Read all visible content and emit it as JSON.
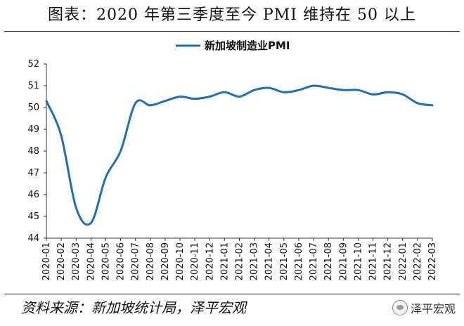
{
  "header": {
    "title": "图表：2020 年第三季度至今 PMI 维持在 50 以上"
  },
  "footer": {
    "source": "资料来源：新加坡统计局，泽平宏观",
    "watermark": "泽平宏观"
  },
  "colors": {
    "series": "#1f6fb2",
    "axis": "#333333"
  },
  "chart_data": {
    "type": "line",
    "title": "图表：2020 年第三季度至今 PMI 维持在 50 以上",
    "xlabel": "",
    "ylabel": "",
    "ylim": [
      44,
      52
    ],
    "yticks": [
      44,
      45,
      46,
      47,
      48,
      49,
      50,
      51,
      52
    ],
    "categories": [
      "2020-01",
      "2020-02",
      "2020-03",
      "2020-04",
      "2020-05",
      "2020-06",
      "2020-07",
      "2020-08",
      "2020-09",
      "2020-10",
      "2020-11",
      "2020-12",
      "2021-01",
      "2021-02",
      "2021-03",
      "2021-04",
      "2021-05",
      "2021-06",
      "2021-07",
      "2021-08",
      "2021-09",
      "2021-10",
      "2021-11",
      "2021-12",
      "2022-01",
      "2022-02",
      "2022-03"
    ],
    "series": [
      {
        "name": "新加坡制造业PMI",
        "values": [
          50.3,
          48.7,
          45.4,
          44.7,
          46.8,
          48.0,
          50.2,
          50.1,
          50.3,
          50.5,
          50.4,
          50.5,
          50.7,
          50.5,
          50.8,
          50.9,
          50.7,
          50.8,
          51.0,
          50.9,
          50.8,
          50.8,
          50.6,
          50.7,
          50.6,
          50.2,
          50.1
        ]
      }
    ],
    "legend_position": "top-center",
    "grid": false
  }
}
